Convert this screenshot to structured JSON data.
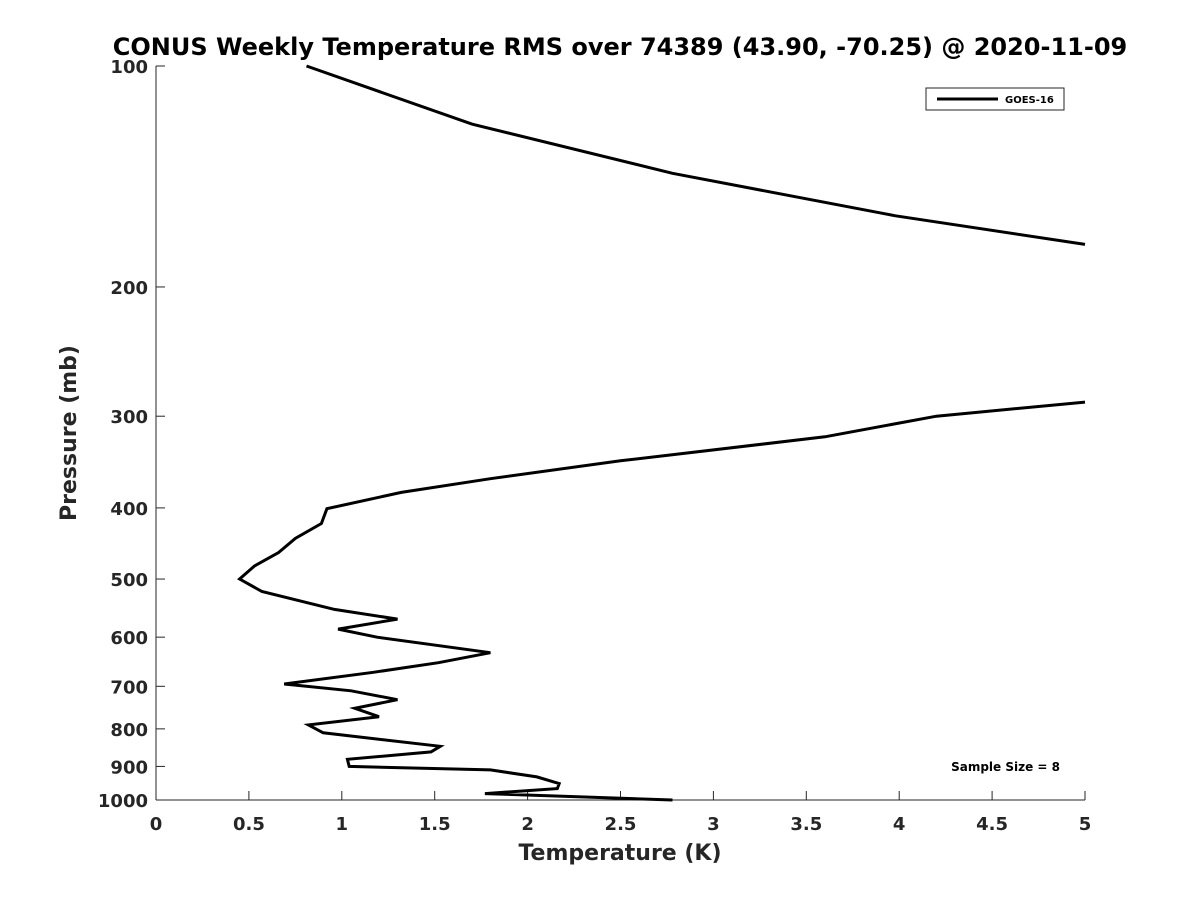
{
  "chart_data": {
    "type": "line",
    "title": "CONUS Weekly Temperature RMS over 74389 (43.90, -70.25) @ 2020-11-09",
    "xlabel": "Temperature (K)",
    "ylabel": "Pressure (mb)",
    "xlim": [
      0,
      5
    ],
    "ylim": [
      100,
      1000
    ],
    "y_scale": "log",
    "y_reversed": true,
    "x_ticks": [
      "0",
      "0.5",
      "1",
      "1.5",
      "2",
      "2.5",
      "3",
      "3.5",
      "4",
      "4.5",
      "5"
    ],
    "y_ticks": [
      "100",
      "200",
      "300",
      "400",
      "500",
      "600",
      "700",
      "800",
      "900",
      "1000"
    ],
    "grid": false,
    "legend_position": "top-right",
    "annotation": "Sample Size = 8",
    "series": [
      {
        "name": "GOES-16",
        "color": "#000000",
        "x": [
          0.81,
          1.7,
          2.78,
          3.98,
          5.0,
          null,
          5.0,
          4.2,
          3.6,
          2.5,
          1.8,
          1.32,
          0.92,
          0.89,
          0.75,
          0.66,
          0.53,
          0.45,
          0.57,
          0.96,
          1.3,
          0.98,
          1.19,
          1.8,
          1.52,
          1.17,
          0.69,
          1.05,
          1.3,
          1.07,
          1.2,
          0.82,
          0.9,
          1.53,
          1.48,
          1.03,
          1.04,
          1.8,
          2.05,
          2.17,
          2.16,
          1.77,
          2.78
        ],
        "y": [
          100,
          120,
          140,
          160,
          175,
          null,
          287,
          300,
          320,
          345,
          365,
          381,
          401,
          420,
          440,
          460,
          480,
          500,
          520,
          550,
          567,
          585,
          600,
          630,
          650,
          670,
          695,
          710,
          730,
          750,
          770,
          790,
          810,
          845,
          860,
          880,
          900,
          910,
          930,
          950,
          965,
          980,
          1000
        ]
      }
    ]
  }
}
